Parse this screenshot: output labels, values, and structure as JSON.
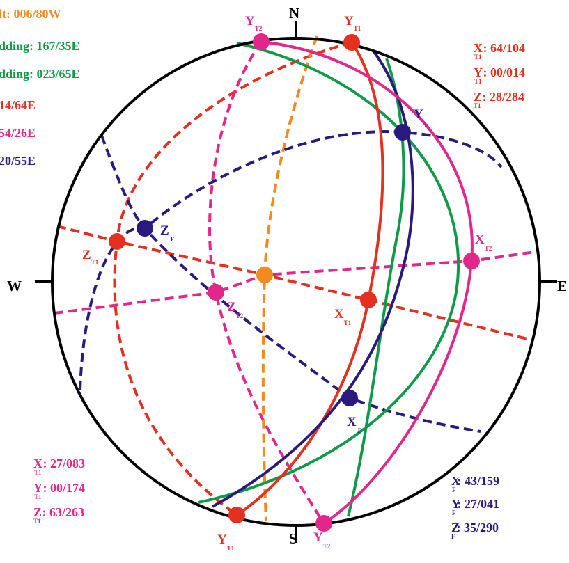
{
  "colors": {
    "fault": "#f28a1d",
    "bedding": "#0f9a4a",
    "t1": "#e3301f",
    "t2": "#e3278a",
    "f": "#2b1a7e",
    "frame": "#000000"
  },
  "compass": {
    "north": "N",
    "south": "S",
    "east": "E",
    "west": "W"
  },
  "legend": [
    {
      "text": "lt: 006/80W",
      "color": "fault"
    },
    {
      "text": "dding: 167/35E",
      "color": "bedding"
    },
    {
      "text": "dding: 023/65E",
      "color": "bedding"
    },
    {
      "text": "14/64E",
      "color": "t1"
    },
    {
      "text": "54/26E",
      "color": "t2"
    },
    {
      "text": "20/55E",
      "color": "f"
    }
  ],
  "axes_t1_upper": {
    "x": {
      "letter": "X",
      "sub": "T1",
      "value": ": 64/104"
    },
    "y": {
      "letter": "Y",
      "sub": "T1",
      "value": ": 00/014"
    },
    "z": {
      "letter": "Z",
      "sub": "T1",
      "value": ": 28/284"
    }
  },
  "axes_t2_lower": {
    "x": {
      "letter": "X",
      "sub": "T1",
      "value": ": 27/083"
    },
    "y": {
      "letter": "Y",
      "sub": "T1",
      "value": ": 00/174"
    },
    "z": {
      "letter": "Z",
      "sub": "T1",
      "value": ": 63/263"
    }
  },
  "axes_f": {
    "x": {
      "letter": "X",
      "sub": "F",
      "value": ": 43/159"
    },
    "y": {
      "letter": "Y",
      "sub": "F",
      "value": ": 27/041"
    },
    "z": {
      "letter": "Z",
      "sub": "F",
      "value": ": 35/290"
    }
  },
  "point_labels": {
    "y_t2_top": {
      "letter": "Y",
      "sub": "T2"
    },
    "y_t1_top": {
      "letter": "Y",
      "sub": "T1"
    },
    "y_f": {
      "letter": "Y",
      "sub": "F"
    },
    "x_t2": {
      "letter": "X",
      "sub": "T2"
    },
    "z_f": {
      "letter": "Z",
      "sub": "F"
    },
    "z_t1": {
      "letter": "Z",
      "sub": "T1"
    },
    "z_t2": {
      "letter": "Z",
      "sub": "T2"
    },
    "x_t1": {
      "letter": "X",
      "sub": "T1"
    },
    "x_f": {
      "letter": "X",
      "sub": "F"
    },
    "y_t1_bottom": {
      "letter": "Y",
      "sub": "T1"
    },
    "y_t2_bottom": {
      "letter": "Y",
      "sub": "T2"
    }
  }
}
